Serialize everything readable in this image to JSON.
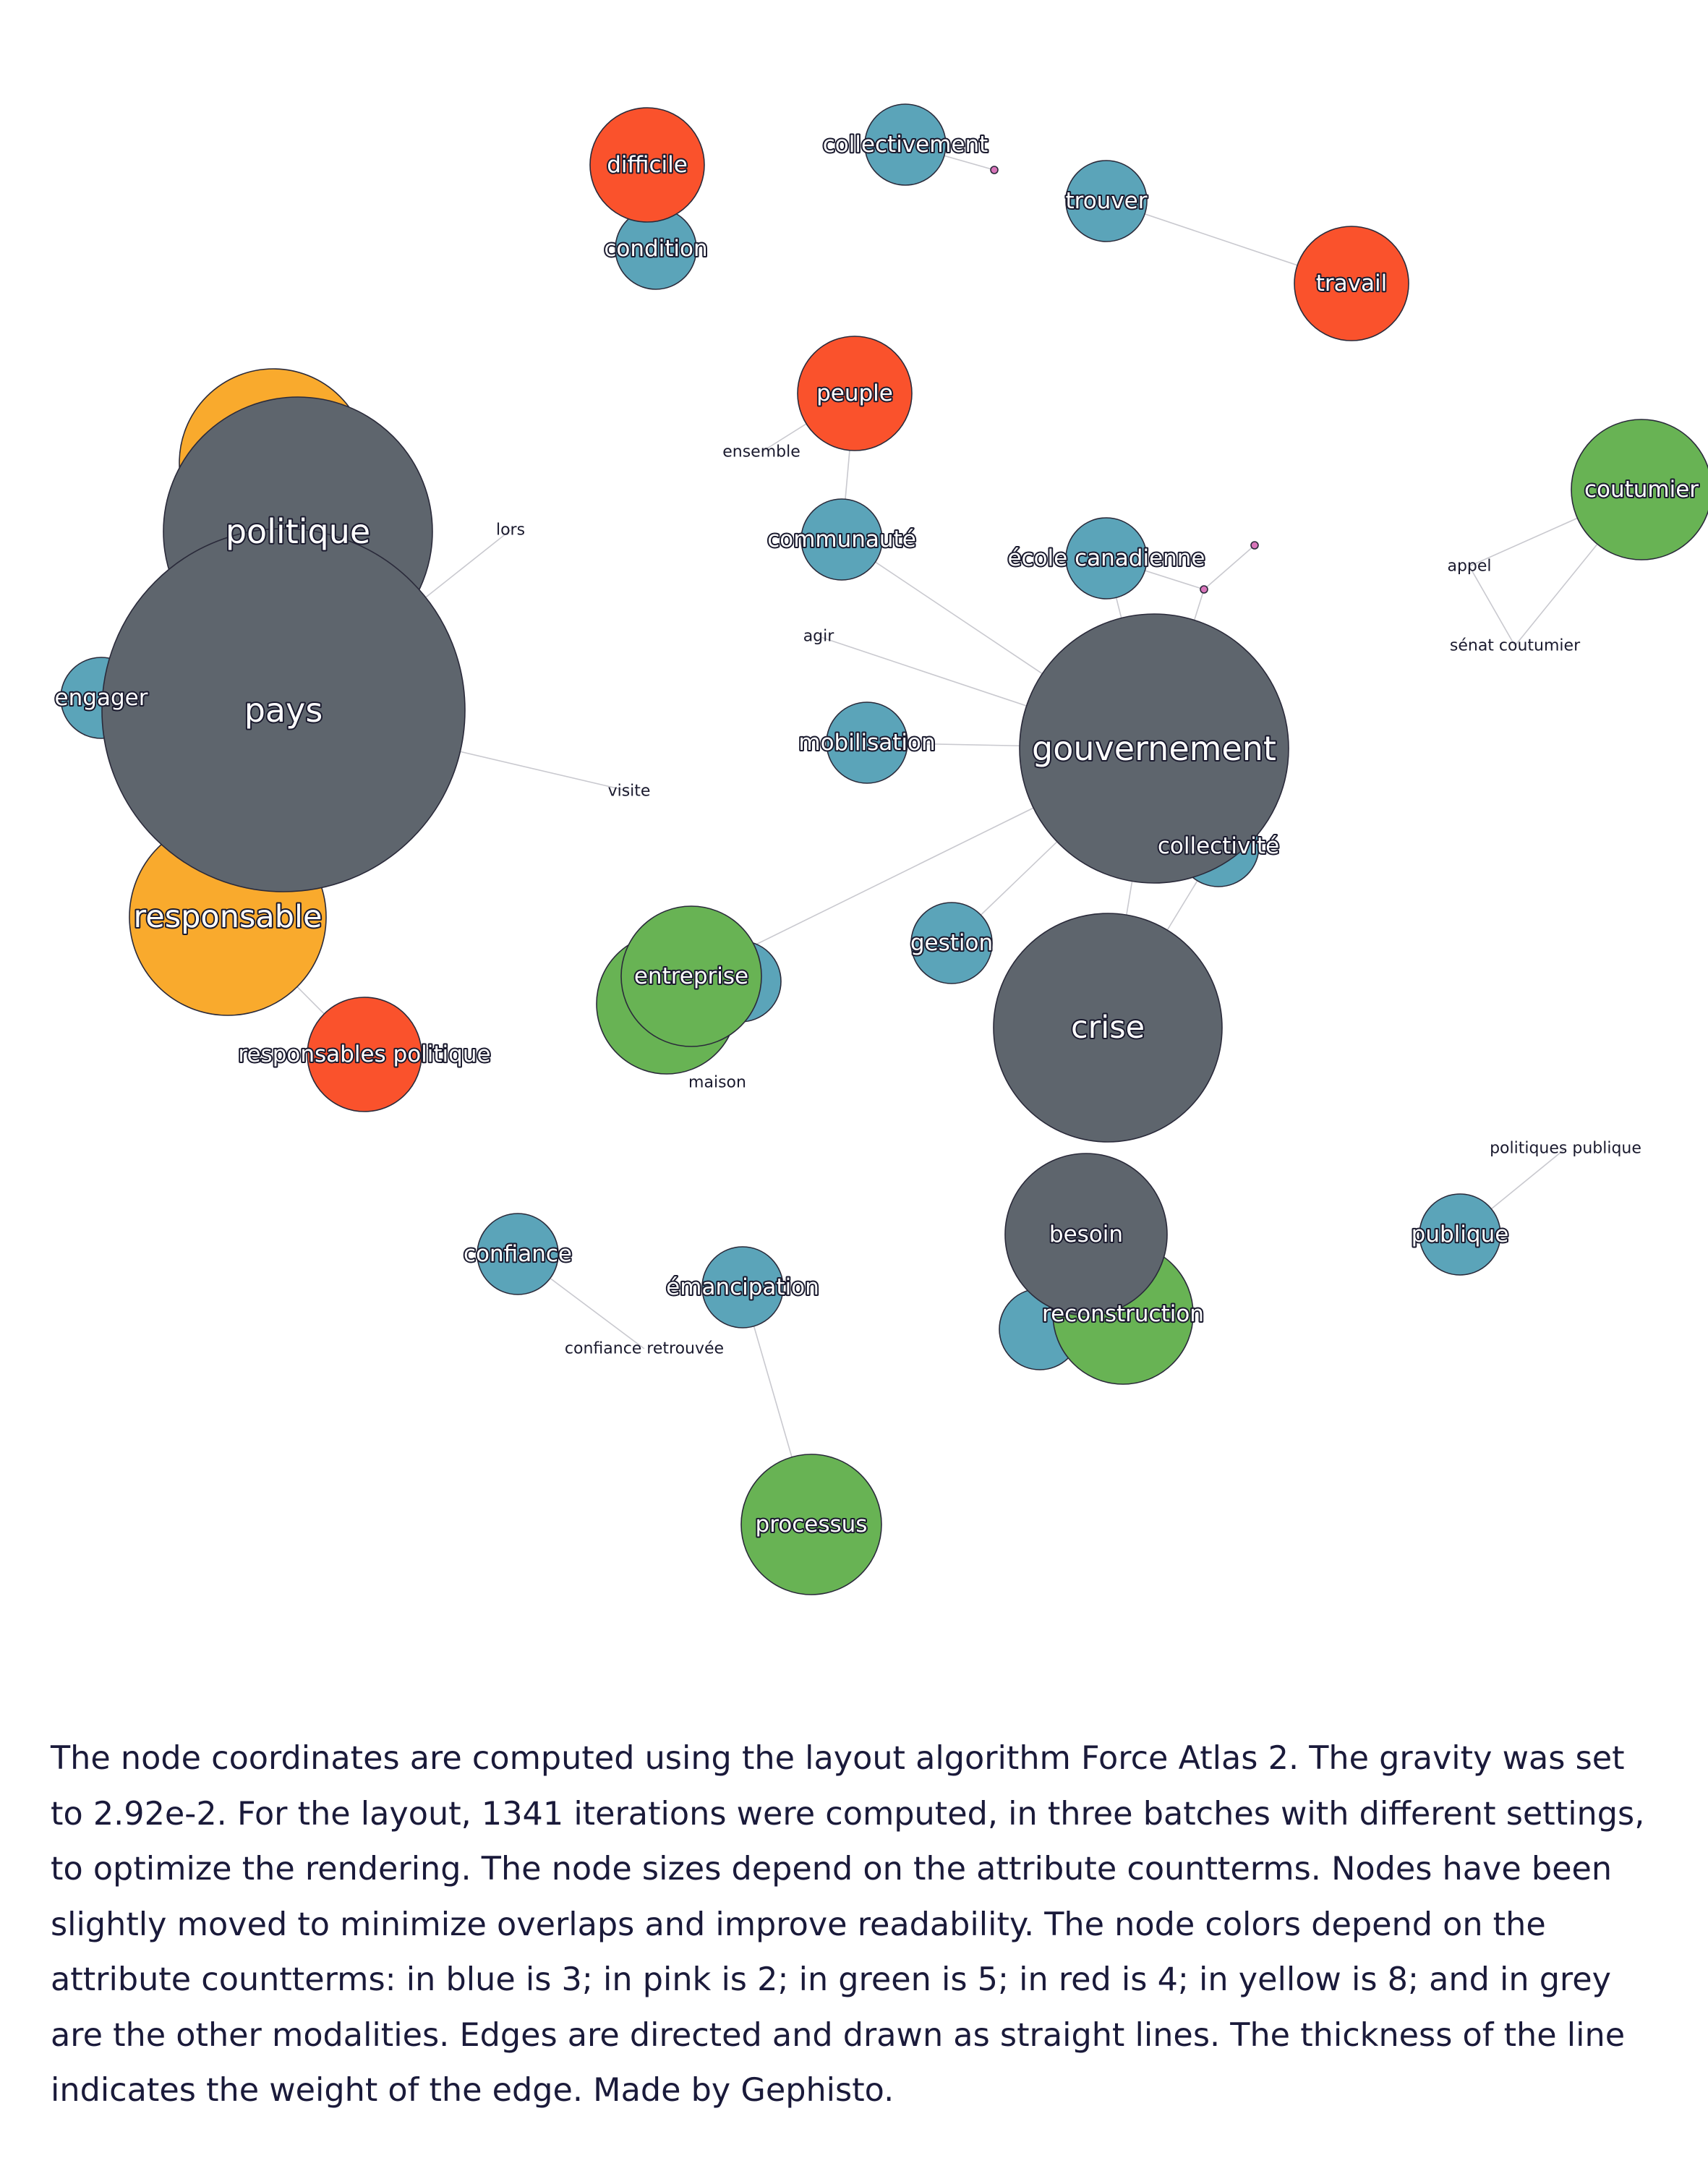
{
  "colors": {
    "blue": "#5ba4b9",
    "pink": "#d874b9",
    "green": "#68b354",
    "red": "#fa522c",
    "yellow": "#f9aa2d",
    "grey": "#5e656d",
    "edge": "#c9c9cf",
    "text": "#1a1a3a"
  },
  "graph": {
    "nodes": [
      {
        "id": "n_pol_y",
        "label": "",
        "color": "yellow"
      },
      {
        "id": "n_resp",
        "label": "responsable",
        "color": "yellow"
      },
      {
        "id": "n_eng",
        "label": "engager",
        "color": "blue"
      },
      {
        "id": "n_pol",
        "label": "politique",
        "color": "grey"
      },
      {
        "id": "n_pays",
        "label": "pays",
        "color": "grey"
      },
      {
        "id": "n_respol",
        "label": "responsables politique",
        "color": "red"
      },
      {
        "id": "n_cond",
        "label": "condition",
        "color": "blue"
      },
      {
        "id": "n_diff",
        "label": "difficile",
        "color": "red"
      },
      {
        "id": "n_coll",
        "label": "collectivement",
        "color": "blue"
      },
      {
        "id": "n_trouv",
        "label": "trouver",
        "color": "blue"
      },
      {
        "id": "n_trav",
        "label": "travail",
        "color": "red"
      },
      {
        "id": "n_peup",
        "label": "peuple",
        "color": "red"
      },
      {
        "id": "n_comm",
        "label": "communauté",
        "color": "blue"
      },
      {
        "id": "n_ecole",
        "label": "école canadienne",
        "color": "blue"
      },
      {
        "id": "n_cout",
        "label": "coutumier",
        "color": "green"
      },
      {
        "id": "n_mob",
        "label": "mobilisation",
        "color": "blue"
      },
      {
        "id": "n_colv",
        "label": "collectivité",
        "color": "blue"
      },
      {
        "id": "n_gouv",
        "label": "gouvernement",
        "color": "grey"
      },
      {
        "id": "n_gest",
        "label": "gestion",
        "color": "blue"
      },
      {
        "id": "n_entb",
        "label": "",
        "color": "blue"
      },
      {
        "id": "n_entg",
        "label": "",
        "color": "green"
      },
      {
        "id": "n_ent",
        "label": "entreprise",
        "color": "green"
      },
      {
        "id": "n_crise",
        "label": "crise",
        "color": "grey"
      },
      {
        "id": "n_recb",
        "label": "",
        "color": "blue"
      },
      {
        "id": "n_rec",
        "label": "reconstruction",
        "color": "green"
      },
      {
        "id": "n_bes",
        "label": "besoin",
        "color": "grey"
      },
      {
        "id": "n_pub",
        "label": "publique",
        "color": "blue"
      },
      {
        "id": "n_conf",
        "label": "confiance",
        "color": "blue"
      },
      {
        "id": "n_eman",
        "label": "émancipation",
        "color": "blue"
      },
      {
        "id": "n_proc",
        "label": "processus",
        "color": "green"
      },
      {
        "id": "n_p1",
        "label": "",
        "color": "pink"
      },
      {
        "id": "n_p2",
        "label": "",
        "color": "pink"
      },
      {
        "id": "n_p3",
        "label": "",
        "color": "pink"
      }
    ],
    "small_labels": [
      {
        "id": "t_lors",
        "text": "lors"
      },
      {
        "id": "t_visite",
        "text": "visite"
      },
      {
        "id": "t_ensemble",
        "text": "ensemble"
      },
      {
        "id": "t_agir",
        "text": "agir"
      },
      {
        "id": "t_appel",
        "text": "appel"
      },
      {
        "id": "t_senat",
        "text": "sénat coutumier"
      },
      {
        "id": "t_maison",
        "text": "maison"
      },
      {
        "id": "t_polpub",
        "text": "politiques publique"
      },
      {
        "id": "t_confret",
        "text": "confiance retrouvée"
      }
    ],
    "edges": [
      [
        "n_pays",
        "t_lors"
      ],
      [
        "n_pays",
        "t_visite"
      ],
      [
        "n_resp",
        "n_respol"
      ],
      [
        "n_coll",
        "n_p1"
      ],
      [
        "n_trouv",
        "n_trav"
      ],
      [
        "n_peup",
        "t_ensemble"
      ],
      [
        "n_peup",
        "n_comm"
      ],
      [
        "n_comm",
        "n_gouv"
      ],
      [
        "t_agir",
        "n_gouv"
      ],
      [
        "n_mob",
        "n_gouv"
      ],
      [
        "n_ecole",
        "n_p3"
      ],
      [
        "n_ecole",
        "n_gouv"
      ],
      [
        "n_p2",
        "n_p3"
      ],
      [
        "n_p3",
        "n_gouv"
      ],
      [
        "n_cout",
        "t_appel"
      ],
      [
        "t_appel",
        "t_senat"
      ],
      [
        "n_cout",
        "t_senat"
      ],
      [
        "n_gouv",
        "n_ent"
      ],
      [
        "n_gouv",
        "n_gest"
      ],
      [
        "n_gouv",
        "n_crise"
      ],
      [
        "n_colv",
        "n_crise"
      ],
      [
        "n_pub",
        "t_polpub"
      ],
      [
        "n_conf",
        "t_confret"
      ],
      [
        "n_eman",
        "n_proc"
      ]
    ]
  },
  "caption": "The node coordinates are computed using the layout algorithm Force Atlas 2. The gravity was set to 2.92e-2. For the layout, 1341 iterations were computed, in three batches with different settings, to optimize the rendering. The node sizes depend on the attribute countterms. Nodes have been slightly moved to minimize overlaps and improve readability. The node colors depend on the attribute countterms: in blue is 3; in pink is 2; in green is 5; in red is 4; in yellow is 8; and in grey are the other modalities. Edges are directed and drawn as straight lines. The thickness of the line indicates the weight of the edge.  Made by Gephisto."
}
